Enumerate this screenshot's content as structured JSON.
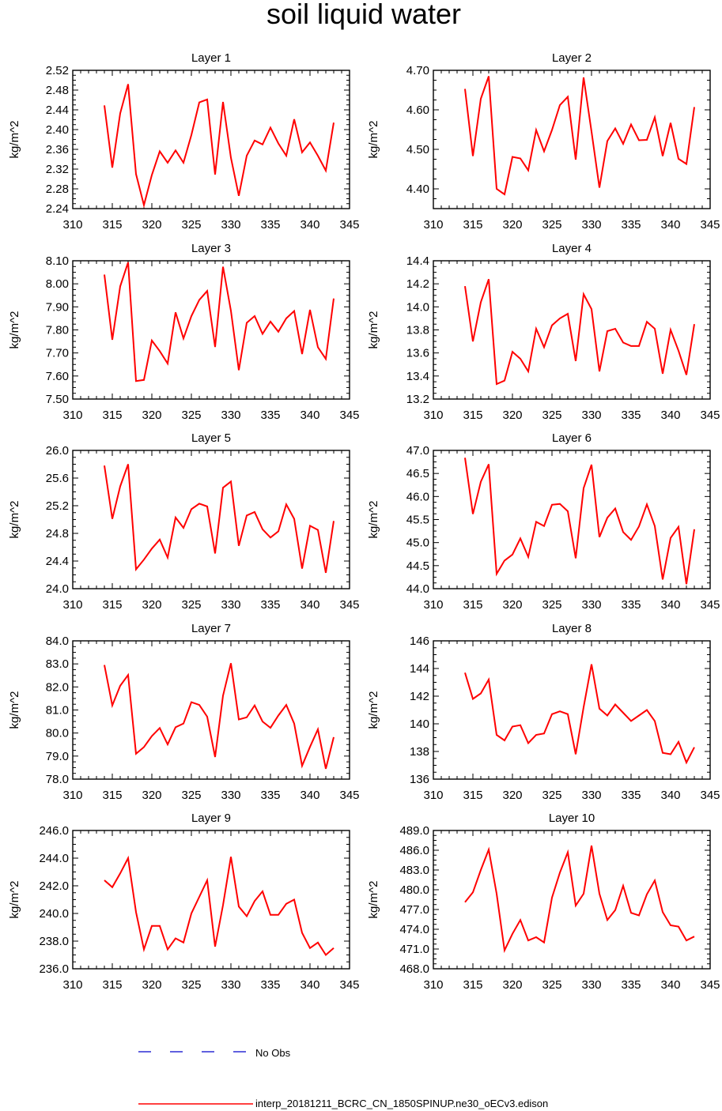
{
  "title": "soil liquid water",
  "ylabel": "kg/m^2",
  "legend": {
    "obs_label": "No Obs",
    "model_label": "interp_20181211_BCRC_CN_1850SPINUP.ne30_oECv3.edison",
    "model_color": "#ff0000",
    "obs_color": "#0000cc"
  },
  "chart_data": [
    {
      "type": "line",
      "title": "Layer 1",
      "ylabel": "kg/m^2",
      "xlim": [
        310,
        345
      ],
      "ylim": [
        2.24,
        2.52
      ],
      "yticks": [
        2.24,
        2.28,
        2.32,
        2.36,
        2.4,
        2.44,
        2.48,
        2.52
      ],
      "ydec": 2,
      "x": [
        314,
        315,
        316,
        317,
        318,
        319,
        320,
        321,
        322,
        323,
        324,
        325,
        326,
        327,
        328,
        329,
        330,
        331,
        332,
        333,
        334,
        335,
        336,
        337,
        338,
        339,
        340,
        341,
        342,
        343
      ],
      "values": [
        2.449,
        2.323,
        2.433,
        2.492,
        2.31,
        2.247,
        2.308,
        2.356,
        2.333,
        2.358,
        2.333,
        2.389,
        2.455,
        2.461,
        2.309,
        2.456,
        2.343,
        2.266,
        2.347,
        2.378,
        2.37,
        2.404,
        2.372,
        2.347,
        2.421,
        2.354,
        2.374,
        2.347,
        2.317,
        2.414
      ]
    },
    {
      "type": "line",
      "title": "Layer 2",
      "ylabel": "kg/m^2",
      "xlim": [
        310,
        345
      ],
      "ylim": [
        4.35,
        4.7
      ],
      "yticks": [
        4.4,
        4.5,
        4.6,
        4.7
      ],
      "ydec": 2,
      "x": [
        314,
        315,
        316,
        317,
        318,
        319,
        320,
        321,
        322,
        323,
        324,
        325,
        326,
        327,
        328,
        329,
        330,
        331,
        332,
        333,
        334,
        335,
        336,
        337,
        338,
        339,
        340,
        341,
        342,
        343
      ],
      "values": [
        4.653,
        4.483,
        4.628,
        4.685,
        4.4,
        4.386,
        4.481,
        4.477,
        4.447,
        4.549,
        4.495,
        4.549,
        4.612,
        4.633,
        4.474,
        4.682,
        4.545,
        4.403,
        4.521,
        4.553,
        4.514,
        4.563,
        4.523,
        4.524,
        4.581,
        4.483,
        4.567,
        4.476,
        4.463,
        4.607
      ]
    },
    {
      "type": "line",
      "title": "Layer 3",
      "ylabel": "kg/m^2",
      "xlim": [
        310,
        345
      ],
      "ylim": [
        7.5,
        8.1
      ],
      "yticks": [
        7.5,
        7.6,
        7.7,
        7.8,
        7.9,
        8.0,
        8.1
      ],
      "ydec": 2,
      "x": [
        314,
        315,
        316,
        317,
        318,
        319,
        320,
        321,
        322,
        323,
        324,
        325,
        326,
        327,
        328,
        329,
        330,
        331,
        332,
        333,
        334,
        335,
        336,
        337,
        338,
        339,
        340,
        341,
        342,
        343
      ],
      "values": [
        8.04,
        7.757,
        7.989,
        8.093,
        7.578,
        7.583,
        7.754,
        7.708,
        7.654,
        7.876,
        7.763,
        7.86,
        7.93,
        7.969,
        7.726,
        8.074,
        7.883,
        7.625,
        7.831,
        7.86,
        7.783,
        7.836,
        7.792,
        7.85,
        7.882,
        7.695,
        7.887,
        7.725,
        7.674,
        7.936
      ]
    },
    {
      "type": "line",
      "title": "Layer 4",
      "ylabel": "kg/m^2",
      "xlim": [
        310,
        345
      ],
      "ylim": [
        13.2,
        14.4
      ],
      "yticks": [
        13.2,
        13.4,
        13.6,
        13.8,
        14.0,
        14.2,
        14.4
      ],
      "ydec": 1,
      "x": [
        314,
        315,
        316,
        317,
        318,
        319,
        320,
        321,
        322,
        323,
        324,
        325,
        326,
        327,
        328,
        329,
        330,
        331,
        332,
        333,
        334,
        335,
        336,
        337,
        338,
        339,
        340,
        341,
        342,
        343
      ],
      "values": [
        14.18,
        13.7,
        14.04,
        14.24,
        13.33,
        13.36,
        13.61,
        13.55,
        13.44,
        13.81,
        13.65,
        13.84,
        13.9,
        13.94,
        13.53,
        14.11,
        13.98,
        13.44,
        13.79,
        13.81,
        13.69,
        13.66,
        13.66,
        13.87,
        13.81,
        13.42,
        13.8,
        13.62,
        13.41,
        13.85
      ]
    },
    {
      "type": "line",
      "title": "Layer 5",
      "ylabel": "kg/m^2",
      "xlim": [
        310,
        345
      ],
      "ylim": [
        24.0,
        26.0
      ],
      "yticks": [
        24.0,
        24.4,
        24.8,
        25.2,
        25.6,
        26.0
      ],
      "ydec": 1,
      "x": [
        314,
        315,
        316,
        317,
        318,
        319,
        320,
        321,
        322,
        323,
        324,
        325,
        326,
        327,
        328,
        329,
        330,
        331,
        332,
        333,
        334,
        335,
        336,
        337,
        338,
        339,
        340,
        341,
        342,
        343
      ],
      "values": [
        25.78,
        25.01,
        25.48,
        25.8,
        24.28,
        24.42,
        24.58,
        24.71,
        24.45,
        25.03,
        24.88,
        25.15,
        25.23,
        25.19,
        24.51,
        25.46,
        25.55,
        24.62,
        25.06,
        25.11,
        24.86,
        24.74,
        24.83,
        25.22,
        25.01,
        24.29,
        24.91,
        24.85,
        24.23,
        24.98
      ]
    },
    {
      "type": "line",
      "title": "Layer 6",
      "ylabel": "kg/m^2",
      "xlim": [
        310,
        345
      ],
      "ylim": [
        44.0,
        47.0
      ],
      "yticks": [
        44.0,
        44.5,
        45.0,
        45.5,
        46.0,
        46.5,
        47.0
      ],
      "ydec": 1,
      "x": [
        314,
        315,
        316,
        317,
        318,
        319,
        320,
        321,
        322,
        323,
        324,
        325,
        326,
        327,
        328,
        329,
        330,
        331,
        332,
        333,
        334,
        335,
        336,
        337,
        338,
        339,
        340,
        341,
        342,
        343
      ],
      "values": [
        46.84,
        45.62,
        46.32,
        46.7,
        44.32,
        44.61,
        44.74,
        45.09,
        44.69,
        45.45,
        45.36,
        45.82,
        45.84,
        45.68,
        44.66,
        46.18,
        46.69,
        45.12,
        45.54,
        45.74,
        45.23,
        45.06,
        45.35,
        45.83,
        45.36,
        44.2,
        45.1,
        45.34,
        44.1,
        45.29
      ]
    },
    {
      "type": "line",
      "title": "Layer 7",
      "ylabel": "kg/m^2",
      "xlim": [
        310,
        345
      ],
      "ylim": [
        78.0,
        84.0
      ],
      "yticks": [
        78.0,
        79.0,
        80.0,
        81.0,
        82.0,
        83.0,
        84.0
      ],
      "ydec": 1,
      "x": [
        314,
        315,
        316,
        317,
        318,
        319,
        320,
        321,
        322,
        323,
        324,
        325,
        326,
        327,
        328,
        329,
        330,
        331,
        332,
        333,
        334,
        335,
        336,
        337,
        338,
        339,
        340,
        341,
        342,
        343
      ],
      "values": [
        82.95,
        81.2,
        82.05,
        82.52,
        79.1,
        79.39,
        79.87,
        80.22,
        79.51,
        80.25,
        80.41,
        81.34,
        81.22,
        80.71,
        78.96,
        81.62,
        83.03,
        80.59,
        80.68,
        81.2,
        80.5,
        80.23,
        80.76,
        81.22,
        80.41,
        78.58,
        79.4,
        80.16,
        78.45,
        79.82
      ]
    },
    {
      "type": "line",
      "title": "Layer 8",
      "ylabel": "kg/m^2",
      "xlim": [
        310,
        345
      ],
      "ylim": [
        136,
        146
      ],
      "yticks": [
        136,
        138,
        140,
        142,
        144,
        146
      ],
      "ydec": 0,
      "x": [
        314,
        315,
        316,
        317,
        318,
        319,
        320,
        321,
        322,
        323,
        324,
        325,
        326,
        327,
        328,
        329,
        330,
        331,
        332,
        333,
        334,
        335,
        336,
        337,
        338,
        339,
        340,
        341,
        342,
        343
      ],
      "values": [
        143.7,
        141.8,
        142.2,
        143.2,
        139.2,
        138.8,
        139.8,
        139.9,
        138.6,
        139.2,
        139.3,
        140.7,
        140.9,
        140.7,
        137.8,
        141.2,
        144.3,
        141.1,
        140.6,
        141.4,
        140.8,
        140.2,
        140.6,
        141.0,
        140.2,
        137.9,
        137.8,
        138.7,
        137.2,
        138.3
      ]
    },
    {
      "type": "line",
      "title": "Layer 9",
      "ylabel": "kg/m^2",
      "xlim": [
        310,
        345
      ],
      "ylim": [
        236.0,
        246.0
      ],
      "yticks": [
        236.0,
        238.0,
        240.0,
        242.0,
        244.0,
        246.0
      ],
      "ydec": 1,
      "x": [
        314,
        315,
        316,
        317,
        318,
        319,
        320,
        321,
        322,
        323,
        324,
        325,
        326,
        327,
        328,
        329,
        330,
        331,
        332,
        333,
        334,
        335,
        336,
        337,
        338,
        339,
        340,
        341,
        342,
        343
      ],
      "values": [
        242.4,
        241.9,
        242.9,
        244.0,
        240.1,
        237.4,
        239.1,
        239.1,
        237.4,
        238.2,
        237.9,
        240.0,
        241.2,
        242.4,
        237.6,
        240.6,
        244.1,
        240.5,
        239.8,
        240.9,
        241.6,
        239.9,
        239.9,
        240.7,
        241.0,
        238.6,
        237.5,
        237.9,
        237.0,
        237.5
      ]
    },
    {
      "type": "line",
      "title": "Layer 10",
      "ylabel": "kg/m^2",
      "xlim": [
        310,
        345
      ],
      "ylim": [
        468.0,
        489.0
      ],
      "yticks": [
        468.0,
        471.0,
        474.0,
        477.0,
        480.0,
        483.0,
        486.0,
        489.0
      ],
      "ydec": 1,
      "x": [
        314,
        315,
        316,
        317,
        318,
        319,
        320,
        321,
        322,
        323,
        324,
        325,
        326,
        327,
        328,
        329,
        330,
        331,
        332,
        333,
        334,
        335,
        336,
        337,
        338,
        339,
        340,
        341,
        342,
        343
      ],
      "values": [
        478.1,
        479.6,
        483.0,
        486.1,
        479.4,
        470.8,
        473.3,
        475.4,
        472.3,
        472.8,
        472.0,
        478.8,
        482.6,
        485.7,
        477.6,
        479.4,
        486.7,
        479.4,
        475.4,
        476.9,
        480.6,
        476.5,
        476.1,
        479.3,
        481.4,
        476.6,
        474.6,
        474.4,
        472.3,
        472.9
      ],
      "xticks": [
        310,
        315,
        320,
        325,
        330,
        335,
        340,
        345
      ]
    }
  ],
  "xticks": [
    310,
    315,
    320,
    325,
    330,
    335,
    340,
    345
  ]
}
